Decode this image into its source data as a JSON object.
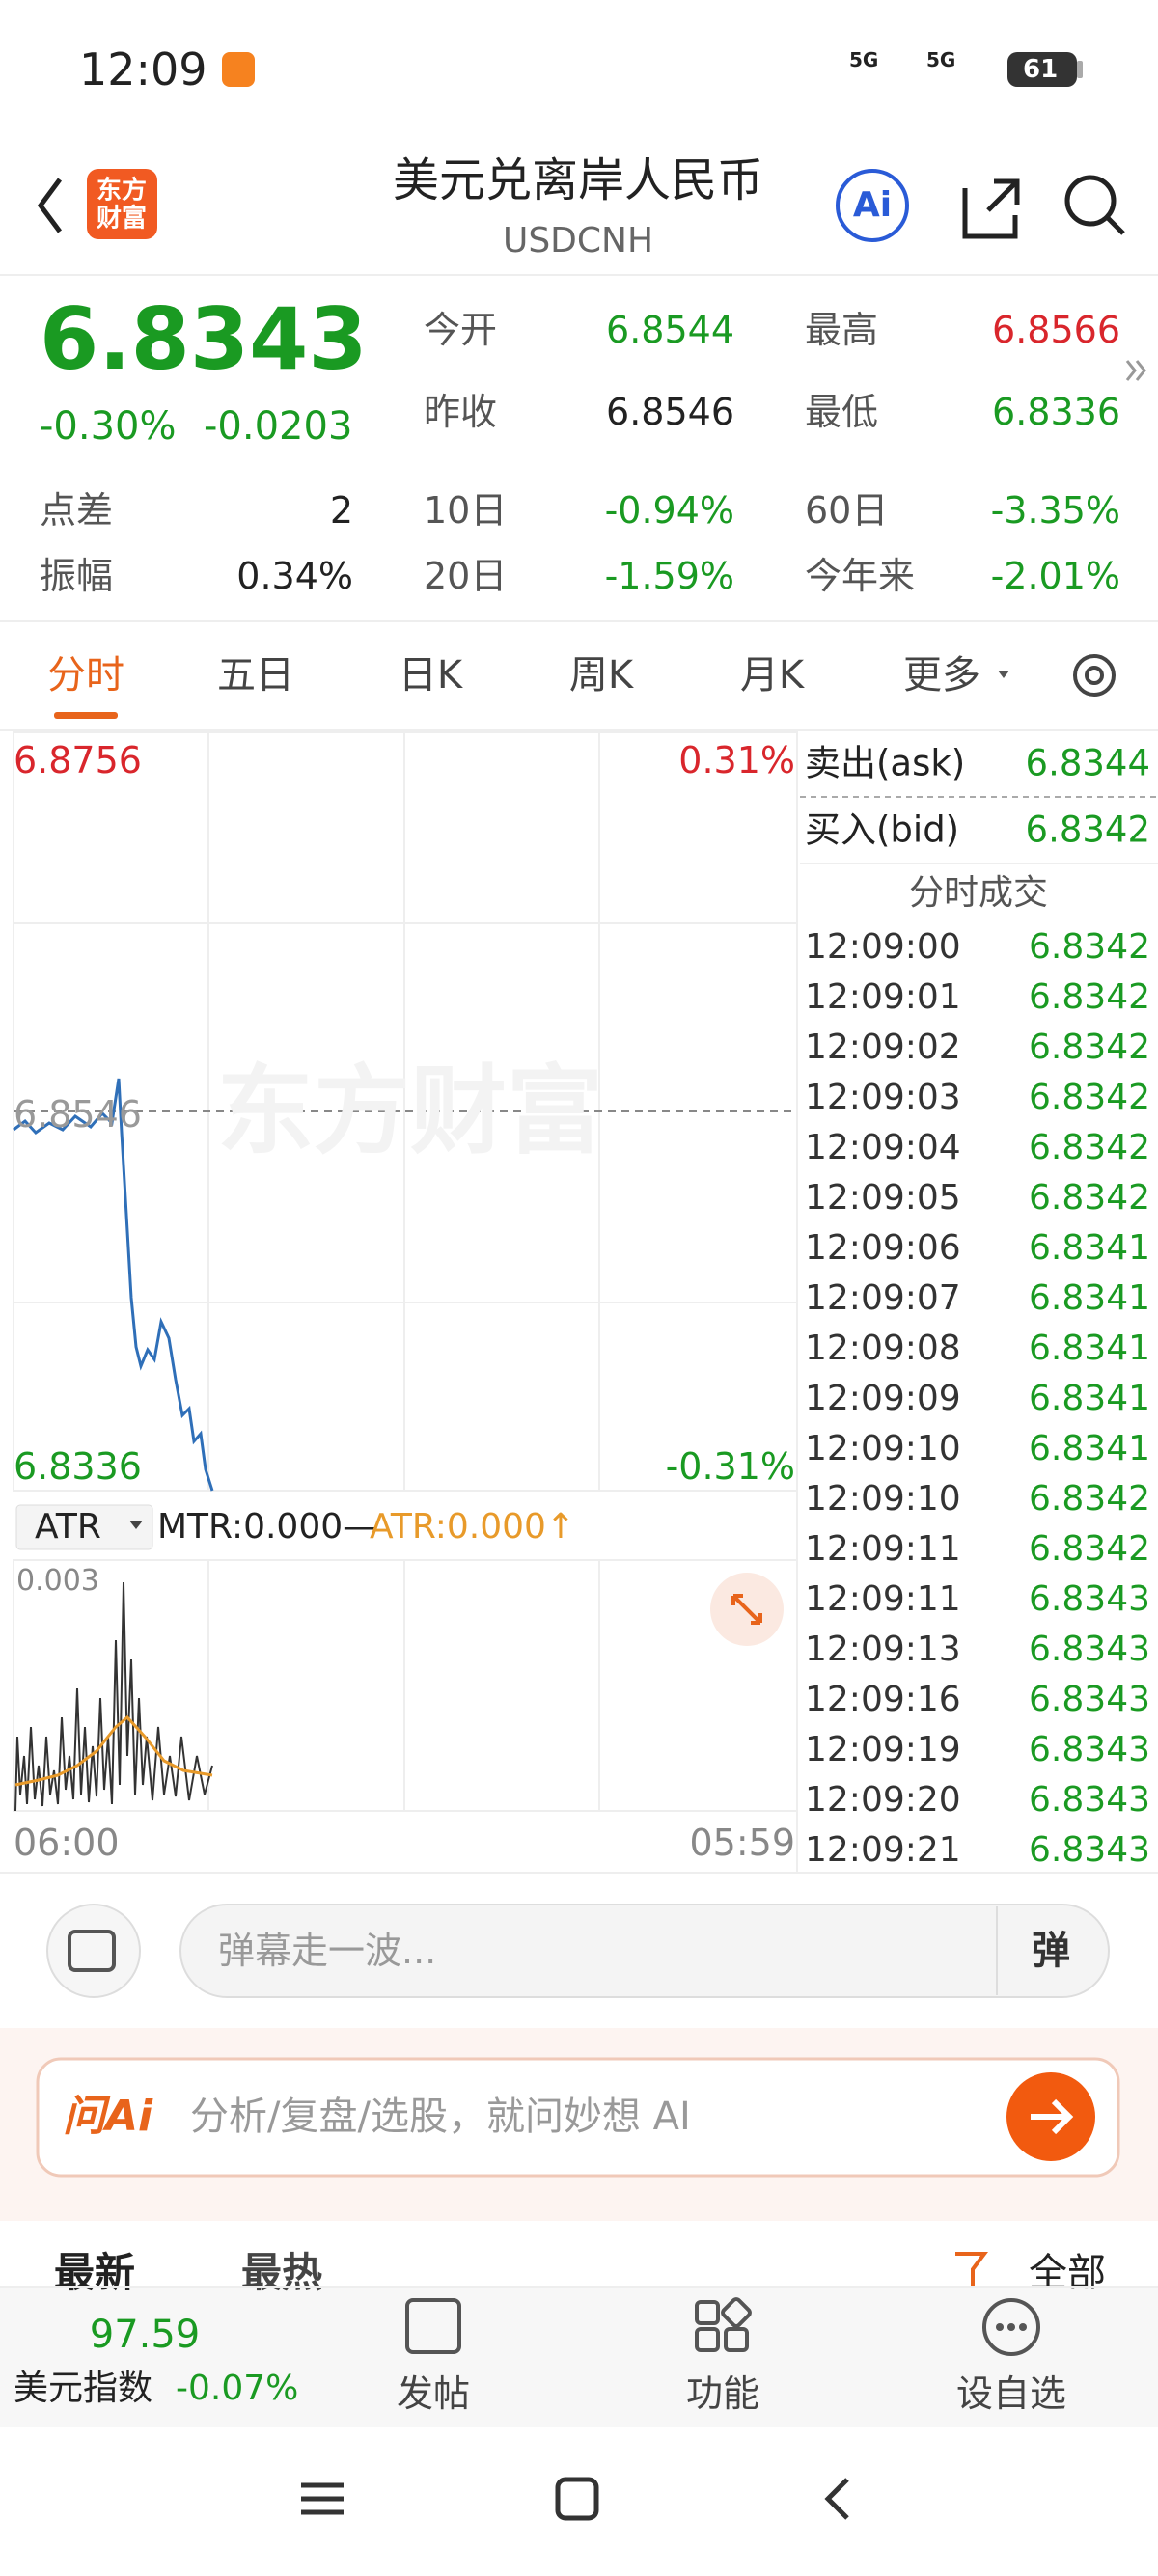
{
  "status": {
    "time": "12:09",
    "net1": "5G",
    "net2": "5G",
    "battery": "61"
  },
  "header": {
    "logo": "东方财富",
    "title": "美元兑离岸人民币",
    "subtitle": "USDCNH",
    "ai": "Ai"
  },
  "quote": {
    "price": "6.8343",
    "change_pct": "-0.30%",
    "change": "-0.0203"
  },
  "stats": [
    {
      "label": "今开",
      "value": "6.8544"
    },
    {
      "label": "最高",
      "value": "6.8566"
    },
    {
      "label": "昨收",
      "value": "6.8546"
    },
    {
      "label": "最低",
      "value": "6.8336"
    },
    {
      "label": "点差",
      "value": "2"
    },
    {
      "label": "10日",
      "value": "-0.94%"
    },
    {
      "label": "60日",
      "value": "-3.35%"
    },
    {
      "label": "振幅",
      "value": "0.34%"
    },
    {
      "label": "20日",
      "value": "-1.59%"
    },
    {
      "label": "今年来",
      "value": "-2.01%"
    }
  ],
  "tabs": [
    "分时",
    "五日",
    "日K",
    "周K",
    "月K",
    "更多"
  ],
  "chart": {
    "high": "6.8756",
    "high_pct": "0.31%",
    "low": "6.8336",
    "low_pct": "-0.31%",
    "prev": "6.8546",
    "watermark": "东方财富",
    "indicator": "ATR",
    "mtr": "MTR:0.000—",
    "atr": "ATR:0.000↑",
    "sub_max": "0.003",
    "start": "06:00",
    "end": "05:59"
  },
  "book": {
    "ask_label": "卖出(ask)",
    "ask": "6.8344",
    "bid_label": "买入(bid)",
    "bid": "6.8342",
    "trades_title": "分时成交"
  },
  "trades": [
    {
      "time": "12:09:00",
      "price": "6.8342"
    },
    {
      "time": "12:09:01",
      "price": "6.8342"
    },
    {
      "time": "12:09:02",
      "price": "6.8342"
    },
    {
      "time": "12:09:03",
      "price": "6.8342"
    },
    {
      "time": "12:09:04",
      "price": "6.8342"
    },
    {
      "time": "12:09:05",
      "price": "6.8342"
    },
    {
      "time": "12:09:06",
      "price": "6.8341"
    },
    {
      "time": "12:09:07",
      "price": "6.8341"
    },
    {
      "time": "12:09:08",
      "price": "6.8341"
    },
    {
      "time": "12:09:09",
      "price": "6.8341"
    },
    {
      "time": "12:09:10",
      "price": "6.8341"
    },
    {
      "time": "12:09:10",
      "price": "6.8342"
    },
    {
      "time": "12:09:11",
      "price": "6.8342"
    },
    {
      "time": "12:09:11",
      "price": "6.8343"
    },
    {
      "time": "12:09:13",
      "price": "6.8343"
    },
    {
      "time": "12:09:16",
      "price": "6.8343"
    },
    {
      "time": "12:09:19",
      "price": "6.8343"
    },
    {
      "time": "12:09:20",
      "price": "6.8343"
    },
    {
      "time": "12:09:21",
      "price": "6.8343"
    }
  ],
  "comment": {
    "placeholder": "弹幕走一波...",
    "button": "弹"
  },
  "ai_box": {
    "logo": "问Ai",
    "placeholder": "分析/复盘/选股，就问妙想 AI"
  },
  "feed": {
    "latest": "最新",
    "hot": "最热",
    "all": "全部"
  },
  "bottom": {
    "index_value": "97.59",
    "index_name": "美元指数",
    "index_change": "-0.07%",
    "post": "发帖",
    "func": "功能",
    "watch": "设自选"
  }
}
